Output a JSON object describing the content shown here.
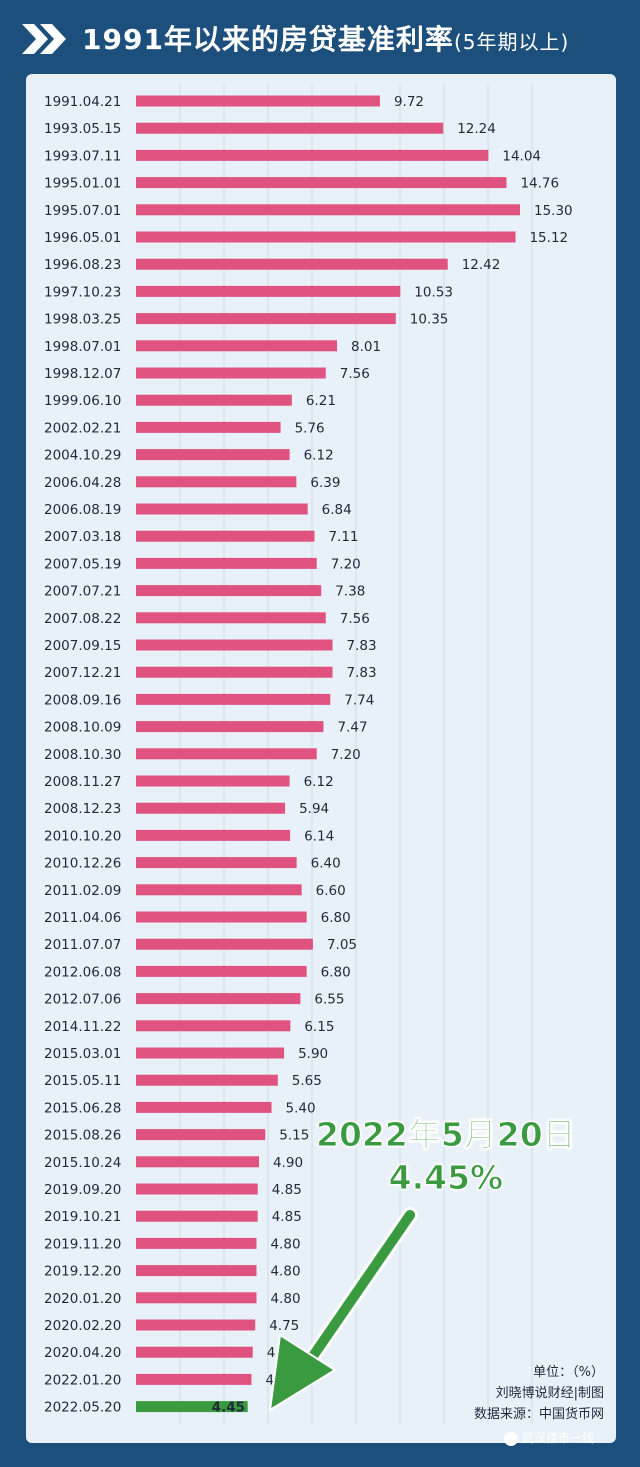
{
  "title": {
    "main": "1991年以来的房贷基准利率",
    "sub": "(5年期以上)"
  },
  "colors": {
    "bar": "#e0527f",
    "highlight_bar": "#3a9a3f",
    "panel": "#e9f1f8",
    "background": "#1d4f7c"
  },
  "chart_data": {
    "type": "bar",
    "orientation": "horizontal",
    "categories": [
      "1991.04.21",
      "1993.05.15",
      "1993.07.11",
      "1995.01.01",
      "1995.07.01",
      "1996.05.01",
      "1996.08.23",
      "1997.10.23",
      "1998.03.25",
      "1998.07.01",
      "1998.12.07",
      "1999.06.10",
      "2002.02.21",
      "2004.10.29",
      "2006.04.28",
      "2006.08.19",
      "2007.03.18",
      "2007.05.19",
      "2007.07.21",
      "2007.08.22",
      "2007.09.15",
      "2007.12.21",
      "2008.09.16",
      "2008.10.09",
      "2008.10.30",
      "2008.11.27",
      "2008.12.23",
      "2010.10.20",
      "2010.12.26",
      "2011.02.09",
      "2011.04.06",
      "2011.07.07",
      "2012.06.08",
      "2012.07.06",
      "2014.11.22",
      "2015.03.01",
      "2015.05.11",
      "2015.06.28",
      "2015.08.26",
      "2015.10.24",
      "2019.09.20",
      "2019.10.21",
      "2019.11.20",
      "2019.12.20",
      "2020.01.20",
      "2020.02.20",
      "2020.04.20",
      "2022.01.20",
      "2022.05.20"
    ],
    "value_labels": [
      "9.72",
      "12.24",
      "14.04",
      "14.76",
      "15.30",
      "15.12",
      "12.42",
      "10.53",
      "10.35",
      "8.01",
      "7.56",
      "6.21",
      "5.76",
      "6.12",
      "6.39",
      "6.84",
      "7.11",
      "7.20",
      "7.38",
      "7.56",
      "7.83",
      "7.83",
      "7.74",
      "7.47",
      "7.20",
      "6.12",
      "5.94",
      "6.14",
      "6.40",
      "6.60",
      "6.80",
      "7.05",
      "6.80",
      "6.55",
      "6.15",
      "5.90",
      "5.65",
      "5.40",
      "5.15",
      "4.90",
      "4.85",
      "4.85",
      "4.80",
      "4.80",
      "4.80",
      "4.75",
      "4.65",
      "4.60",
      "4.45"
    ],
    "values": [
      9.72,
      12.24,
      14.04,
      14.76,
      15.3,
      15.12,
      12.42,
      10.53,
      10.35,
      8.01,
      7.56,
      6.21,
      5.76,
      6.12,
      6.39,
      6.84,
      7.11,
      7.2,
      7.38,
      7.56,
      7.83,
      7.83,
      7.74,
      7.47,
      7.2,
      6.12,
      5.94,
      6.14,
      6.4,
      6.6,
      6.8,
      7.05,
      6.8,
      6.55,
      6.15,
      5.9,
      5.65,
      5.4,
      5.15,
      4.9,
      4.85,
      4.85,
      4.8,
      4.8,
      4.8,
      4.75,
      4.65,
      4.6,
      4.45
    ],
    "highlight_index": 48,
    "grid": true,
    "legend": false
  },
  "annotation": {
    "line1": "2022年5月20日",
    "line2": "4.45%"
  },
  "credits": {
    "unit": "单位：（%）",
    "author": "刘晓博说财经|制图",
    "source": "数据来源：中国货币网"
  },
  "corner": {
    "text": "武汉楼市一线"
  }
}
